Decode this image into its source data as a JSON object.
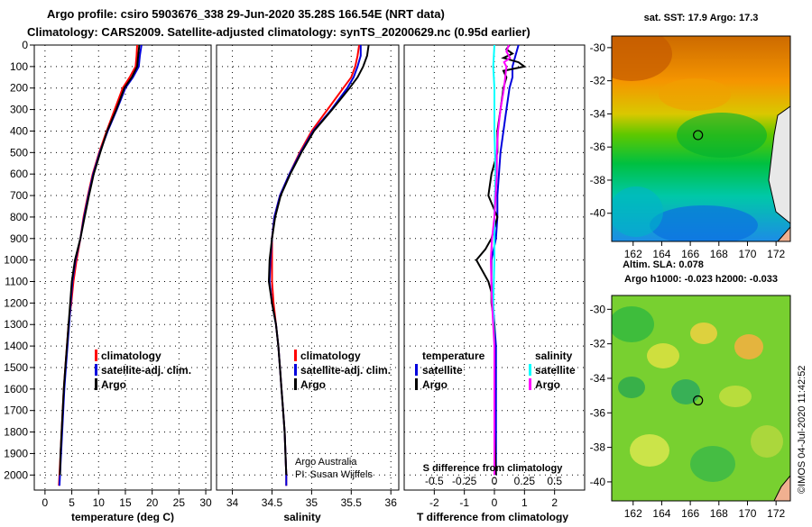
{
  "title_line1": "Argo profile: csiro 5903676_338 29-Jun-2020 35.28S 166.54E (NRT data)",
  "title_line2": "Climatology: CARS2009. Satellite-adjusted climatology: synTS_20200629.nc (0.95d earlier)",
  "colors": {
    "climatology": "#ff0000",
    "satellite": "#0000dd",
    "argo": "#000000",
    "sat_salinity": "#00ffff",
    "argo_salinity": "#ff00ff"
  },
  "chart_data": [
    {
      "type": "line",
      "name": "temperature-profile",
      "xlabel": "temperature (deg C)",
      "ylabel": "",
      "xlim": [
        -2,
        31
      ],
      "ylim": [
        2070,
        0
      ],
      "xticks": [
        0,
        5,
        10,
        15,
        20,
        25,
        30
      ],
      "yticks": [
        0,
        100,
        200,
        300,
        400,
        500,
        600,
        700,
        800,
        900,
        1000,
        1100,
        1200,
        1300,
        1400,
        1500,
        1600,
        1700,
        1800,
        1900,
        2000
      ],
      "legend": [
        "climatology",
        "satellite-adj. clim.",
        "Argo"
      ],
      "series": [
        {
          "name": "climatology",
          "color": "#ff0000",
          "depth": [
            0,
            50,
            100,
            150,
            200,
            300,
            400,
            500,
            600,
            700,
            800,
            900,
            1000,
            1100,
            1200,
            1300,
            1400,
            1500,
            1600,
            1700,
            1800,
            1900,
            2000,
            2050
          ],
          "values": [
            17.2,
            17.1,
            16.9,
            15.8,
            14.5,
            13.0,
            11.5,
            10.1,
            8.9,
            8.0,
            7.2,
            6.6,
            5.9,
            5.3,
            4.9,
            4.4,
            4.1,
            3.8,
            3.5,
            3.3,
            3.1,
            2.9,
            2.7,
            2.6
          ]
        },
        {
          "name": "satellite-adj. clim.",
          "color": "#0000dd",
          "depth": [
            0,
            50,
            100,
            150,
            200,
            300,
            400,
            500,
            600,
            700,
            800,
            900,
            1000,
            1100,
            1200,
            1300,
            1400,
            1500,
            1600,
            1700,
            1800,
            1900,
            2000,
            2050
          ],
          "values": [
            18.0,
            17.7,
            17.5,
            16.4,
            15.0,
            13.4,
            11.7,
            10.2,
            9.0,
            8.1,
            7.3,
            6.6,
            5.7,
            5.1,
            4.8,
            4.5,
            4.2,
            3.9,
            3.6,
            3.4,
            3.2,
            3.0,
            2.8,
            2.7
          ]
        },
        {
          "name": "Argo",
          "color": "#000000",
          "depth": [
            0,
            50,
            100,
            150,
            200,
            300,
            400,
            500,
            600,
            700,
            800,
            900,
            1000,
            1100,
            1200,
            1300,
            1400,
            1500,
            1600,
            1700,
            1800,
            1900,
            2000
          ],
          "values": [
            17.6,
            17.4,
            17.2,
            16.2,
            14.8,
            13.3,
            11.6,
            10.3,
            9.1,
            8.2,
            7.4,
            6.6,
            5.6,
            5.0,
            4.7,
            4.4,
            4.1,
            3.8,
            3.5,
            3.3,
            3.1,
            2.9,
            2.8
          ]
        }
      ]
    },
    {
      "type": "line",
      "name": "salinity-profile",
      "xlabel": "salinity",
      "ylabel": "",
      "xlim": [
        33.8,
        36.1
      ],
      "ylim": [
        2070,
        0
      ],
      "xticks": [
        34,
        34.5,
        35,
        35.5,
        36
      ],
      "xticklabels": [
        "34",
        "34.5",
        "35",
        "35.5",
        "36"
      ],
      "legend": [
        "climatology",
        "satellite-adj. clim.",
        "Argo"
      ],
      "note1": "Argo Australia",
      "note2": "PI: Susan Wijffels",
      "series": [
        {
          "name": "climatology",
          "color": "#ff0000",
          "depth": [
            0,
            50,
            100,
            150,
            200,
            300,
            400,
            500,
            600,
            700,
            800,
            900,
            1000,
            1100,
            1200,
            1300,
            1400,
            1500,
            1600,
            1700,
            1800,
            1900,
            2000,
            2050
          ],
          "values": [
            35.6,
            35.58,
            35.55,
            35.5,
            35.4,
            35.2,
            35.0,
            34.85,
            34.72,
            34.6,
            34.53,
            34.5,
            34.5,
            34.5,
            34.52,
            34.55,
            34.58,
            34.6,
            34.62,
            34.64,
            34.66,
            34.67,
            34.68,
            34.68
          ]
        },
        {
          "name": "satellite-adj. clim.",
          "color": "#0000dd",
          "depth": [
            0,
            50,
            100,
            150,
            200,
            300,
            400,
            500,
            600,
            700,
            800,
            900,
            1000,
            1100,
            1200,
            1300,
            1400,
            1500,
            1600,
            1700,
            1800,
            1900,
            2000,
            2050
          ],
          "values": [
            35.62,
            35.62,
            35.58,
            35.53,
            35.45,
            35.25,
            35.02,
            34.86,
            34.72,
            34.6,
            34.53,
            34.5,
            34.48,
            34.47,
            34.5,
            34.55,
            34.58,
            34.6,
            34.62,
            34.64,
            34.66,
            34.67,
            34.68,
            34.68
          ]
        },
        {
          "name": "Argo",
          "color": "#000000",
          "depth": [
            0,
            50,
            100,
            150,
            200,
            300,
            400,
            500,
            600,
            700,
            800,
            900,
            1000,
            1100,
            1200,
            1300,
            1400,
            1500,
            1600,
            1700,
            1800,
            1900,
            2000
          ],
          "values": [
            35.72,
            35.7,
            35.65,
            35.58,
            35.48,
            35.26,
            35.03,
            34.87,
            34.73,
            34.61,
            34.54,
            34.5,
            34.47,
            34.46,
            34.5,
            34.55,
            34.58,
            34.6,
            34.62,
            34.64,
            34.66,
            34.67,
            34.68
          ]
        }
      ]
    },
    {
      "type": "line",
      "name": "difference-profile",
      "xlabel": "T difference from climatology",
      "ylabel": "",
      "xlabel_top": "S difference from climatology",
      "xlim": [
        -3,
        3
      ],
      "ylim": [
        2070,
        0
      ],
      "xticks": [
        -2,
        -1,
        0,
        1,
        2
      ],
      "xticks_s": [
        -0.5,
        -0.25,
        0,
        0.25,
        0.5
      ],
      "xticklabels_s": [
        "-0.5",
        "-0.25",
        "0",
        "0.25",
        "0.5"
      ],
      "legend_temperature_title": "temperature",
      "legend_salinity_title": "salinity",
      "legend": [
        "satellite",
        "Argo",
        "satellite",
        "Argo"
      ],
      "series": [
        {
          "name": "T satellite",
          "color": "#0000dd",
          "depth": [
            0,
            50,
            100,
            150,
            200,
            300,
            400,
            500,
            600,
            700,
            800,
            900,
            1000,
            1100,
            1200,
            1400,
            1600,
            1800,
            2000
          ],
          "values": [
            0.8,
            0.7,
            0.6,
            0.6,
            0.5,
            0.4,
            0.3,
            0.2,
            0.15,
            0.1,
            0.1,
            0.05,
            -0.1,
            -0.1,
            -0.05,
            0.05,
            0.05,
            0.05,
            0.05
          ]
        },
        {
          "name": "T Argo",
          "color": "#000000",
          "depth": [
            0,
            20,
            40,
            60,
            80,
            100,
            120,
            150,
            200,
            300,
            400,
            500,
            600,
            700,
            800,
            900,
            950,
            1000,
            1050,
            1100,
            1150,
            1200,
            1300,
            1400,
            1600,
            1800,
            2000
          ],
          "values": [
            0.5,
            0.4,
            0.6,
            0.3,
            0.8,
            1.0,
            0.3,
            0.4,
            0.3,
            0.2,
            0.1,
            0.1,
            -0.1,
            -0.2,
            0.1,
            -0.1,
            -0.3,
            -0.6,
            -0.4,
            -0.2,
            -0.1,
            -0.1,
            0.0,
            0.0,
            0.0,
            0.0,
            0.05
          ]
        },
        {
          "name": "S satellite",
          "color": "#00ffff",
          "depth": [
            0,
            100,
            200,
            400,
            600,
            800,
            1000,
            1200,
            1400,
            1600,
            1800,
            2000
          ],
          "values": [
            0.0,
            -0.01,
            0.0,
            0.0,
            0.01,
            0.0,
            0.0,
            -0.01,
            0.0,
            0.0,
            0.0,
            0.0
          ]
        },
        {
          "name": "S Argo",
          "color": "#ff00ff",
          "depth": [
            0,
            30,
            60,
            80,
            100,
            150,
            200,
            300,
            400,
            500,
            600,
            700,
            800,
            900,
            1000,
            1200,
            1400,
            1600,
            1800,
            2000
          ],
          "values": [
            0.12,
            0.1,
            0.13,
            0.08,
            0.1,
            0.09,
            0.08,
            0.05,
            0.03,
            0.02,
            0.02,
            0.01,
            0.0,
            -0.02,
            -0.03,
            -0.02,
            0.0,
            0.0,
            0.0,
            0.0
          ]
        }
      ]
    },
    {
      "type": "heatmap",
      "name": "sst-map",
      "title": "sat. SST: 17.9 Argo: 17.3",
      "xlim": [
        160.5,
        173
      ],
      "ylim": [
        -41.7,
        -29.3
      ],
      "xticks": [
        162,
        164,
        166,
        168,
        170,
        172
      ],
      "yticks": [
        -30,
        -32,
        -34,
        -36,
        -38,
        -40
      ],
      "float_position": [
        166.54,
        -35.28
      ]
    },
    {
      "type": "heatmap",
      "name": "sla-map",
      "title_line1": "Altim. SLA: 0.078",
      "title_line2": "Argo h1000: -0.023 h2000: -0.033",
      "xlim": [
        160.5,
        173
      ],
      "ylim": [
        -41.1,
        -29.2
      ],
      "xticks": [
        162,
        164,
        166,
        168,
        170,
        172
      ],
      "yticks": [
        -30,
        -32,
        -34,
        -36,
        -38,
        -40
      ],
      "float_position": [
        166.54,
        -35.28
      ]
    }
  ],
  "footer": "©IMOS 04-Jul-2020 11:42:52"
}
